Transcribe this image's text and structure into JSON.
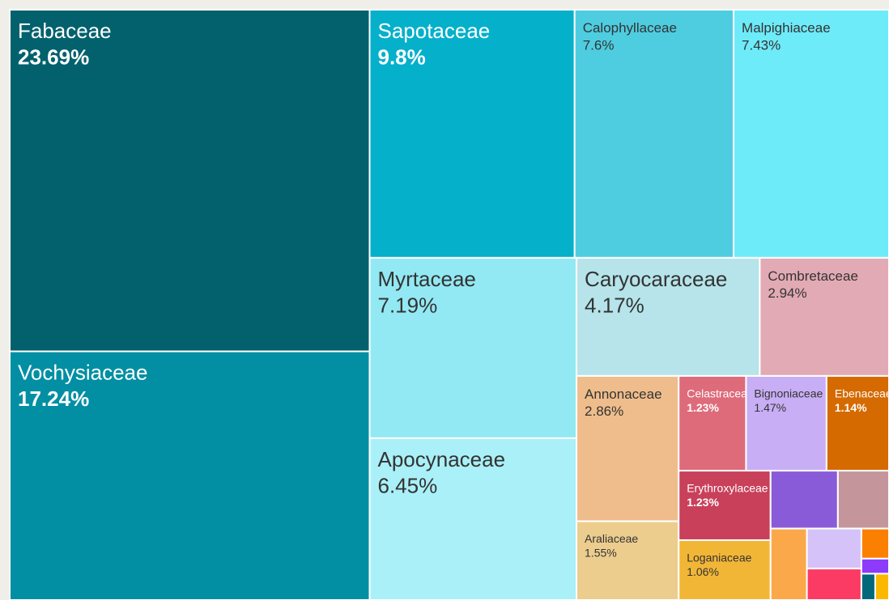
{
  "chart_data": {
    "type": "treemap",
    "categories": [
      "Fabaceae",
      "Vochysiaceae",
      "Sapotaceae",
      "Calophyllaceae",
      "Malpighiaceae",
      "Myrtaceae",
      "Apocynaceae",
      "Caryocaraceae",
      "Combretaceae",
      "Annonaceae",
      "Araliaceae",
      "Celastraceae",
      "Bignoniaceae",
      "Ebenaceae",
      "Erythroxylaceae",
      "Loganiaceae",
      null,
      null,
      null,
      null,
      null,
      null,
      null,
      null,
      null
    ],
    "values": [
      23.69,
      17.24,
      9.8,
      7.6,
      7.43,
      7.19,
      6.45,
      4.17,
      2.94,
      2.86,
      1.55,
      1.23,
      1.47,
      1.14,
      1.23,
      1.06,
      0.75,
      0.57,
      0.5,
      0.42,
      0.33,
      0.16,
      0.08,
      0.07,
      0.07
    ],
    "value_labels": [
      "23.69%",
      "17.24%",
      "9.8%",
      "7.6%",
      "7.43%",
      "7.19%",
      "6.45%",
      "4.17%",
      "2.94%",
      "2.86%",
      "1.55%",
      "1.23%",
      "1.47%",
      "1.14%",
      "1.23%",
      "1.06%",
      null,
      null,
      null,
      null,
      null,
      null,
      null,
      null,
      null
    ],
    "colors": [
      "#03616e",
      "#028fa3",
      "#05b0cb",
      "#4ecde0",
      "#6eebf9",
      "#92e9f3",
      "#aaf0f8",
      "#b6e4ea",
      "#e2aab4",
      "#efbd8c",
      "#eccd8e",
      "#de6b7a",
      "#c8aef4",
      "#d46a00",
      "#c8405a",
      "#f2b637",
      "#8a5bd8",
      "#c4969c",
      "#fba84b",
      "#d4c2f8",
      "#fb3b64",
      "#fb7f00",
      "#8b3bf9",
      "#02687a",
      "#fcb800"
    ]
  }
}
